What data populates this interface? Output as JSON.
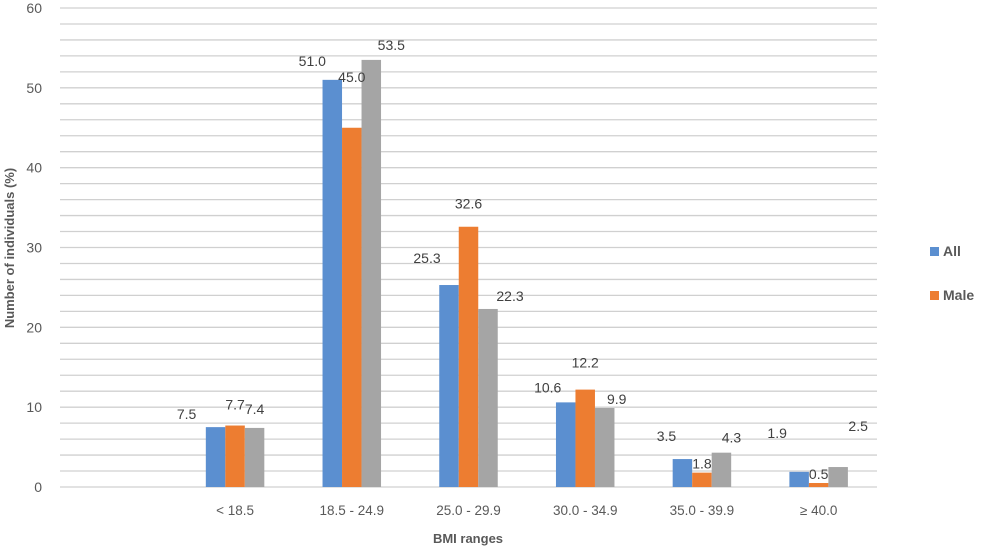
{
  "chart_data": {
    "type": "bar",
    "title": "",
    "xlabel": "BMI ranges",
    "ylabel": "Number of individuals (%)",
    "ylim": [
      0,
      60
    ],
    "y_major_ticks": [
      0,
      10,
      20,
      30,
      40,
      50,
      60
    ],
    "y_minor_step": 2,
    "grid": true,
    "legend_position": "right",
    "categories": [
      "",
      "< 18.5",
      "18.5 - 24.9",
      "25.0 - 29.9",
      "30.0 - 34.9",
      "35.0 - 39.9",
      "≥ 40.0"
    ],
    "series": [
      {
        "name": "All",
        "color": "#5B8FD0",
        "values": [
          null,
          7.5,
          51.0,
          25.3,
          10.6,
          3.5,
          1.9
        ],
        "labels": [
          "",
          "7.5",
          "51.0",
          "25.3",
          "10.6",
          "3.5",
          "1.9"
        ]
      },
      {
        "name": "Male",
        "color": "#ED7D31",
        "values": [
          null,
          7.7,
          45.0,
          32.6,
          12.2,
          1.8,
          0.5
        ],
        "labels": [
          "",
          "7.7",
          "45.0",
          "32.6",
          "12.2",
          "1.8",
          "0.5"
        ]
      },
      {
        "name": "",
        "color": "#A5A5A5",
        "values": [
          null,
          7.4,
          53.5,
          22.3,
          9.9,
          4.3,
          2.5
        ],
        "labels": [
          "",
          "7.4",
          "53.5",
          "22.3",
          "9.9",
          "4.3",
          "2.5"
        ]
      }
    ],
    "legend": [
      {
        "name": "All",
        "color": "#5B8FD0"
      },
      {
        "name": "Male",
        "color": "#ED7D31"
      }
    ]
  }
}
